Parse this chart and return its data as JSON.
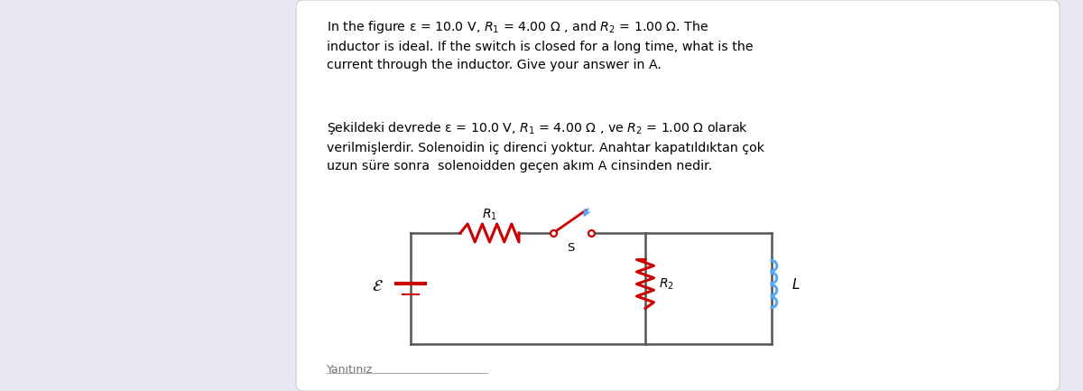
{
  "bg_color": "#e8e8f0",
  "card_bg": "#ffffff",
  "text_en_line1": "In the figure ε = 10.0 V, ",
  "text_en": "In the figure ε = 10.0 V, $R_1$ = 4.00 Ω , and $R_2$ = 1.00 Ω. The\ninductor is ideal. If the switch is closed for a long time, what is the\ncurrent through the inductor. Give your answer in A.",
  "text_tr": "Şekildeki devrede ε = 10.0 V, $R_1$ = 4.00 Ω , ve $R_2$ = 1.00 Ω olarak\nverilmişlerdir. Solenoidin iç direnci yoktur. Anahtar kapatıldıktan çok\nuzun süre sonra  solenoidden geçen akım A cinsinden nedir.",
  "answer_label": "Yanıtınız",
  "circuit_color": "#555555",
  "resistor_color": "#cc0000",
  "inductor_color": "#55aaff",
  "switch_color": "#cc0000",
  "battery_line_color": "#cc0000",
  "epsilon_color": "#000000",
  "cl": 4.55,
  "cr": 8.55,
  "ct": 1.75,
  "cb": 0.52,
  "cm": 7.15
}
